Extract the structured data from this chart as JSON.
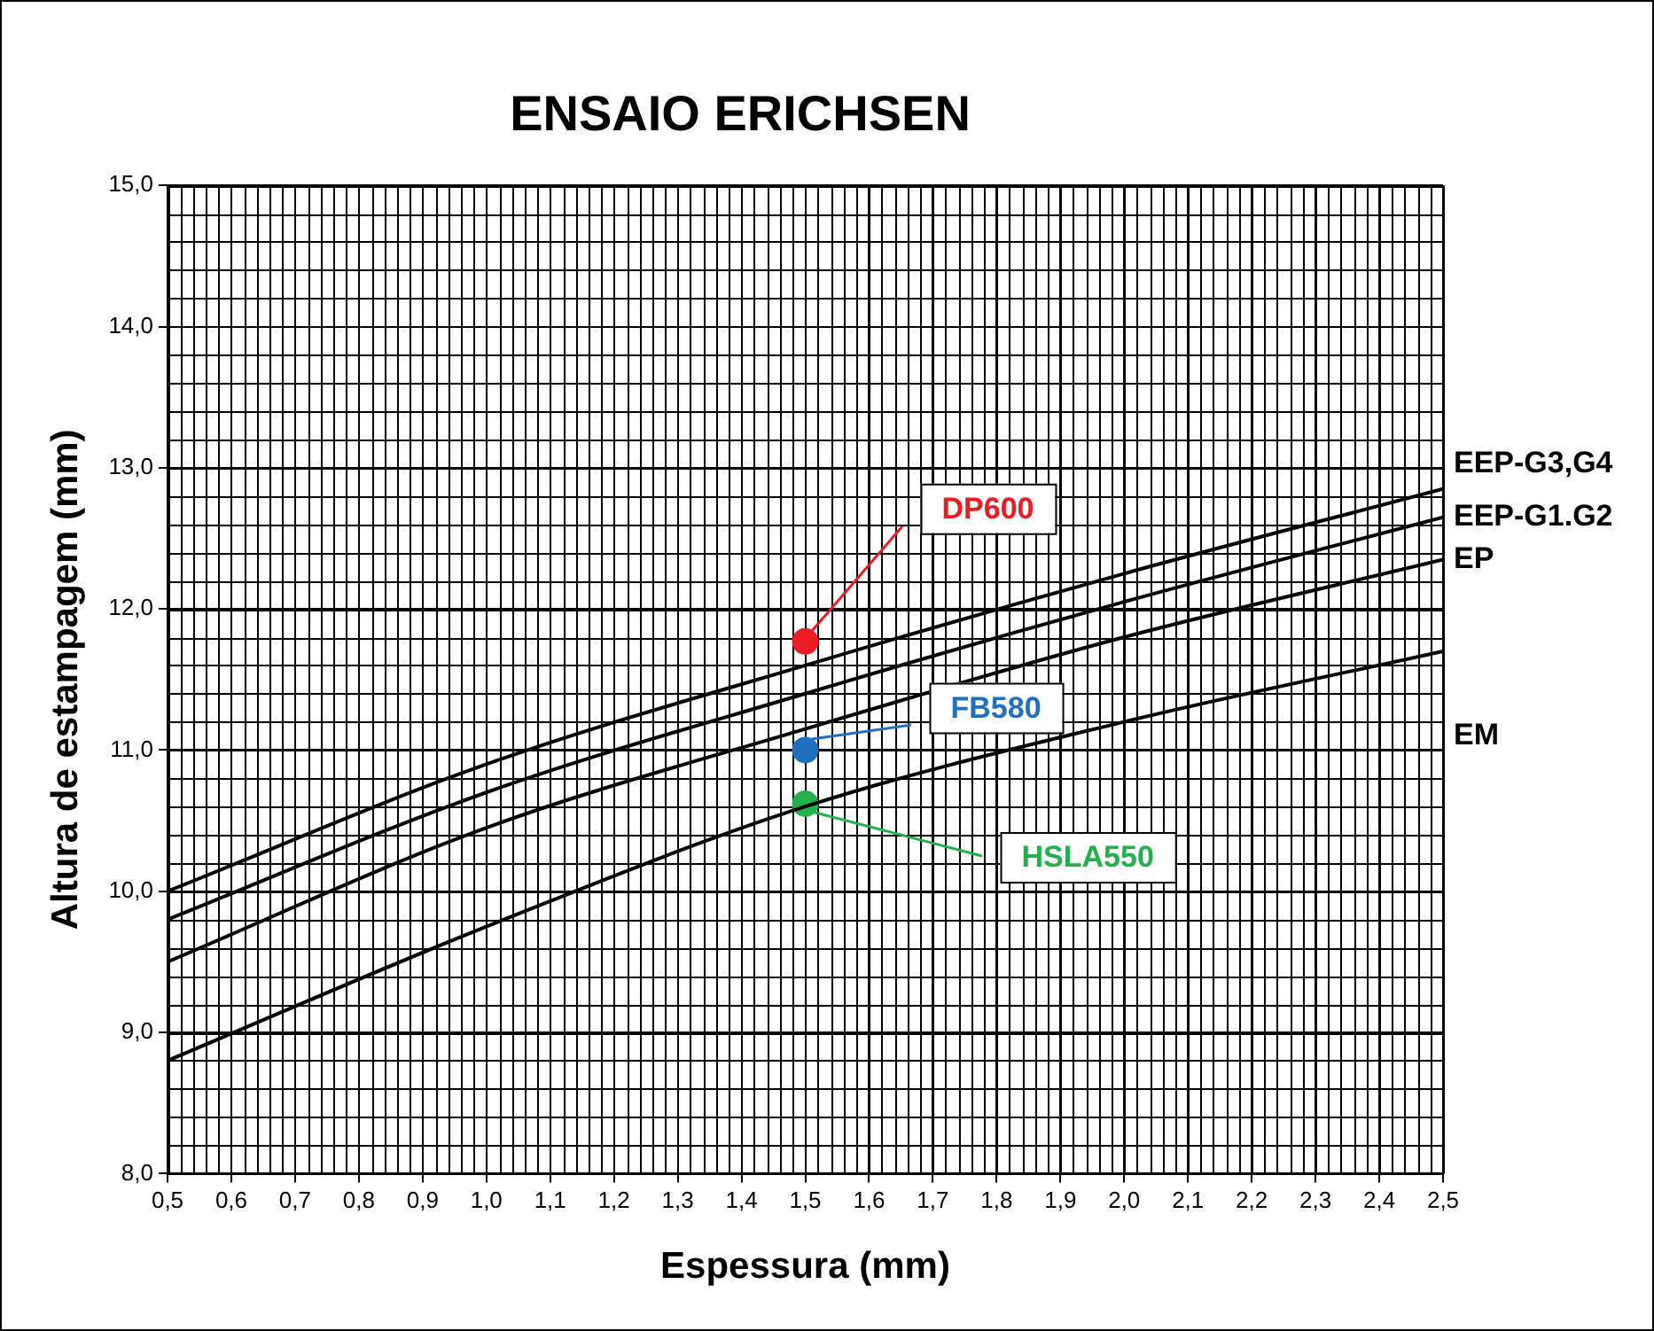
{
  "chart_data": {
    "type": "line",
    "title": "ENSAIO ERICHSEN",
    "xlabel": "Espessura (mm)",
    "ylabel": "Altura de estampagem (mm)",
    "xlim": [
      0.5,
      2.5
    ],
    "xticks": [
      {
        "value": 0.5,
        "label": "0,5"
      },
      {
        "value": 0.6,
        "label": "0,6"
      },
      {
        "value": 0.7,
        "label": "0,7"
      },
      {
        "value": 0.8,
        "label": "0,8"
      },
      {
        "value": 0.9,
        "label": "0,9"
      },
      {
        "value": 1.0,
        "label": "1,0"
      },
      {
        "value": 1.1,
        "label": "1,1"
      },
      {
        "value": 1.2,
        "label": "1,2"
      },
      {
        "value": 1.3,
        "label": "1,3"
      },
      {
        "value": 1.4,
        "label": "1,4"
      },
      {
        "value": 1.5,
        "label": "1,5"
      },
      {
        "value": 1.6,
        "label": "1,6"
      },
      {
        "value": 1.7,
        "label": "1,7"
      },
      {
        "value": 1.8,
        "label": "1,8"
      },
      {
        "value": 1.9,
        "label": "1,9"
      },
      {
        "value": 2.0,
        "label": "2,0"
      },
      {
        "value": 2.1,
        "label": "2,1"
      },
      {
        "value": 2.2,
        "label": "2,2"
      },
      {
        "value": 2.3,
        "label": "2,3"
      },
      {
        "value": 2.4,
        "label": "2,4"
      },
      {
        "value": 2.5,
        "label": "2,5"
      }
    ],
    "ylim": [
      8,
      15
    ],
    "yticks": [
      {
        "value": 8,
        "label": "8,0"
      },
      {
        "value": 9,
        "label": "9,0"
      },
      {
        "value": 10,
        "label": "10,0"
      },
      {
        "value": 11,
        "label": "11,0"
      },
      {
        "value": 12,
        "label": "12,0"
      },
      {
        "value": 13,
        "label": "13,0"
      },
      {
        "value": 14,
        "label": "14,0"
      },
      {
        "value": 15,
        "label": "15,0"
      }
    ],
    "grid": true,
    "legend": false,
    "marker": "none",
    "line_style": "solid",
    "series": [
      {
        "name": "EEP-G3,G4",
        "color": "#000000",
        "x": [
          0.5,
          1.0,
          1.5,
          2.0,
          2.5
        ],
        "values": [
          10.0,
          10.9,
          11.6,
          12.25,
          12.85
        ]
      },
      {
        "name": "EEP-G1.G2",
        "color": "#000000",
        "x": [
          0.5,
          1.0,
          1.5,
          2.0,
          2.5
        ],
        "values": [
          9.8,
          10.7,
          11.4,
          12.05,
          12.65
        ]
      },
      {
        "name": "EP",
        "color": "#000000",
        "x": [
          0.5,
          1.0,
          1.5,
          2.0,
          2.5
        ],
        "values": [
          9.5,
          10.45,
          11.15,
          11.8,
          12.35
        ]
      },
      {
        "name": "EM",
        "color": "#000000",
        "x": [
          0.5,
          1.0,
          1.5,
          2.0,
          2.5
        ],
        "values": [
          8.8,
          9.75,
          10.6,
          11.2,
          11.7
        ]
      },
      {
        "name": "DP600",
        "type": "scatter",
        "marker": "circle",
        "color": "#ed1c24",
        "x": [
          1.5
        ],
        "values": [
          11.77
        ]
      },
      {
        "name": "FB580",
        "type": "scatter",
        "marker": "circle",
        "color": "#1f70c1",
        "x": [
          1.5
        ],
        "values": [
          11.0
        ]
      },
      {
        "name": "HSLA550",
        "type": "scatter",
        "marker": "circle",
        "color": "#22b14c",
        "x": [
          1.5
        ],
        "values": [
          10.62
        ]
      }
    ]
  }
}
